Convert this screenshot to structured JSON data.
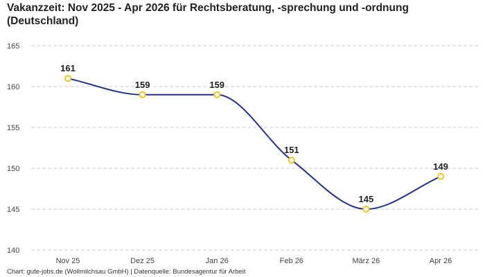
{
  "title": "Vakanzzeit: Nov 2025 - Apr 2026 für Rechtsberatung, -sprechung und -ordnung (Deutschland)",
  "footer": "Chart: gute-jobs.de (Wollmilchsau GmbH) | Datenquelle: Bundesagentur für Arbeit",
  "colors": {
    "line": "#1f2f8f",
    "marker_stroke": "#f2c31c",
    "marker_fill": "#ffffff",
    "grid": "#cccccc"
  },
  "chart_data": {
    "type": "line",
    "title": "Vakanzzeit: Nov 2025 - Apr 2026 für Rechtsberatung, -sprechung und -ordnung (Deutschland)",
    "xlabel": "",
    "ylabel": "",
    "categories": [
      "Nov 25",
      "Dez 25",
      "Jan 26",
      "Feb 26",
      "März 26",
      "Apr 26"
    ],
    "series": [
      {
        "values": [
          161,
          159,
          159,
          151,
          145,
          149
        ]
      }
    ],
    "ylim": [
      140,
      165
    ],
    "yticks": [
      140,
      145,
      150,
      155,
      160,
      165
    ],
    "grid": "horizontal dashed",
    "legend": "none",
    "smooth": true
  }
}
